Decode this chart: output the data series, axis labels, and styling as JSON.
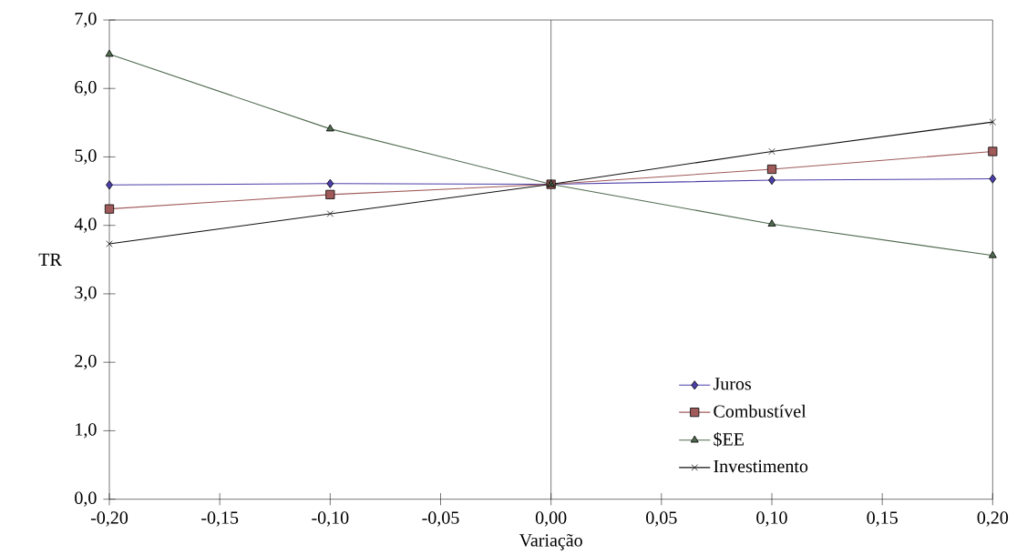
{
  "chart_data": {
    "type": "line",
    "xlabel": "Variação",
    "ylabel": "TR",
    "x": [
      -0.2,
      -0.1,
      0,
      0.1,
      0.2
    ],
    "series": [
      {
        "name": "Juros",
        "color": "#4a3fa8",
        "marker": "diamond",
        "values": [
          4.59,
          4.61,
          4.6,
          4.66,
          4.68
        ]
      },
      {
        "name": "Combustível",
        "color": "#a05a5a",
        "marker": "square",
        "values": [
          4.24,
          4.45,
          4.6,
          4.82,
          5.08
        ]
      },
      {
        "name": "$EE",
        "color": "#4f6a4f",
        "marker": "triangle",
        "values": [
          6.5,
          5.41,
          4.6,
          4.02,
          3.56
        ]
      },
      {
        "name": "Investimento",
        "color": "#111111",
        "marker": "cross",
        "values": [
          3.73,
          4.17,
          4.6,
          5.08,
          5.51
        ]
      }
    ],
    "xlim": [
      -0.2,
      0.2
    ],
    "ylim": [
      0,
      7
    ],
    "xticks": [
      {
        "value": -0.2,
        "label": "-0,20"
      },
      {
        "value": -0.15,
        "label": "-0,15"
      },
      {
        "value": -0.1,
        "label": "-0,10"
      },
      {
        "value": -0.05,
        "label": "-0,05"
      },
      {
        "value": 0,
        "label": "0,00"
      },
      {
        "value": 0.05,
        "label": "0,05"
      },
      {
        "value": 0.1,
        "label": "0,10"
      },
      {
        "value": 0.15,
        "label": "0,15"
      },
      {
        "value": 0.2,
        "label": "0,20"
      }
    ],
    "yticks": [
      {
        "value": 0,
        "label": "0,0"
      },
      {
        "value": 1,
        "label": "1,0"
      },
      {
        "value": 2,
        "label": "2,0"
      },
      {
        "value": 3,
        "label": "3,0"
      },
      {
        "value": 4,
        "label": "4,0"
      },
      {
        "value": 5,
        "label": "5,0"
      },
      {
        "value": 6,
        "label": "6,0"
      },
      {
        "value": 7,
        "label": "7,0"
      }
    ],
    "ref_lines": [
      {
        "axis": "x",
        "value": 0
      }
    ],
    "legend": "bottom right",
    "grid": false,
    "line_style": "solid"
  }
}
